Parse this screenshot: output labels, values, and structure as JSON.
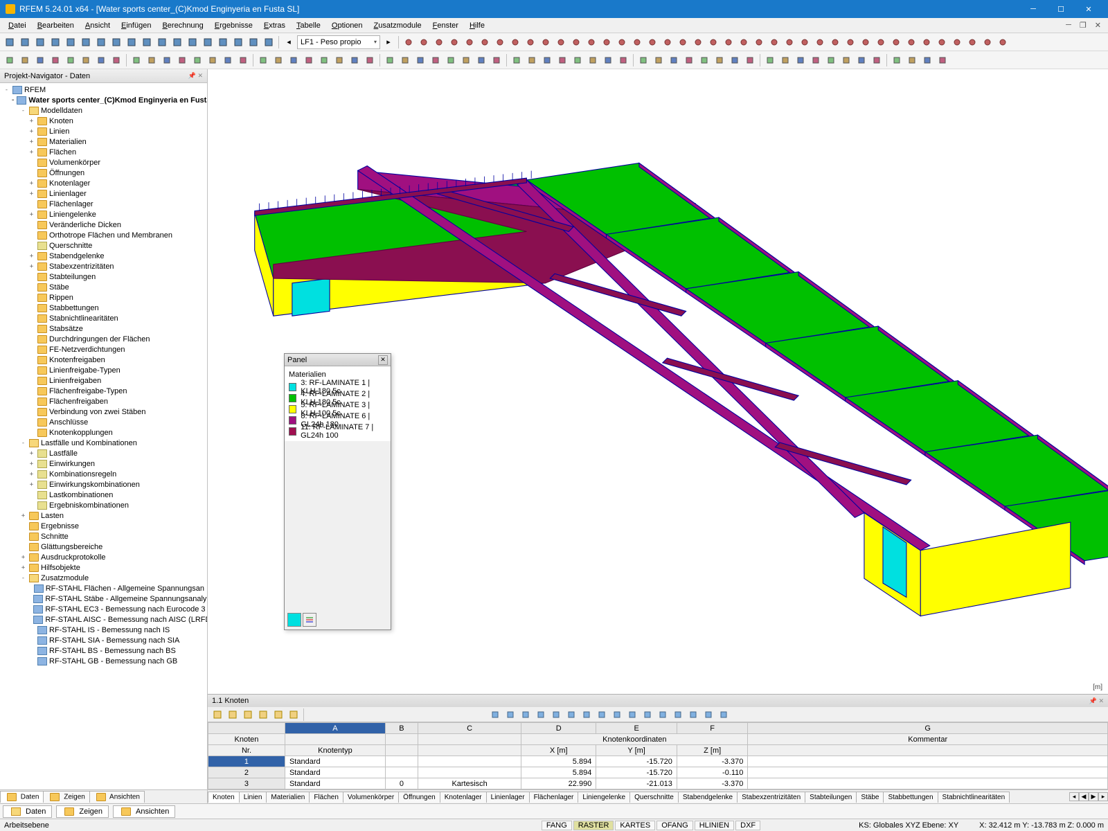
{
  "title": "RFEM 5.24.01 x64 - [Water sports center_(C)Kmod Enginyeria en Fusta SL]",
  "menus": [
    "Datei",
    "Bearbeiten",
    "Ansicht",
    "Einfügen",
    "Berechnung",
    "Ergebnisse",
    "Extras",
    "Tabelle",
    "Optionen",
    "Zusatzmodule",
    "Fenster",
    "Hilfe"
  ],
  "loadcase": "LF1 - Peso propio",
  "nav_title": "Projekt-Navigator - Daten",
  "tree_root": "RFEM",
  "tree_project": "Water sports center_(C)Kmod Enginyeria en Fusta SL",
  "tree": [
    {
      "l": "Modelldaten",
      "d": 2,
      "e": "-",
      "c": "folder-open",
      "children": [
        {
          "l": "Knoten",
          "d": 3,
          "e": "+",
          "c": "folder"
        },
        {
          "l": "Linien",
          "d": 3,
          "e": "+",
          "c": "folder"
        },
        {
          "l": "Materialien",
          "d": 3,
          "e": "+",
          "c": "folder"
        },
        {
          "l": "Flächen",
          "d": 3,
          "e": "+",
          "c": "folder"
        },
        {
          "l": "Volumenkörper",
          "d": 3,
          "e": "",
          "c": "folder"
        },
        {
          "l": "Öffnungen",
          "d": 3,
          "e": "",
          "c": "folder"
        },
        {
          "l": "Knotenlager",
          "d": 3,
          "e": "+",
          "c": "folder"
        },
        {
          "l": "Linienlager",
          "d": 3,
          "e": "+",
          "c": "folder"
        },
        {
          "l": "Flächenlager",
          "d": 3,
          "e": "",
          "c": "folder"
        },
        {
          "l": "Liniengelenke",
          "d": 3,
          "e": "+",
          "c": "folder"
        },
        {
          "l": "Veränderliche Dicken",
          "d": 3,
          "e": "",
          "c": "folder"
        },
        {
          "l": "Orthotrope Flächen und Membranen",
          "d": 3,
          "e": "",
          "c": "folder"
        },
        {
          "l": "Querschnitte",
          "d": 3,
          "e": "",
          "c": "leaf"
        },
        {
          "l": "Stabendgelenke",
          "d": 3,
          "e": "+",
          "c": "folder"
        },
        {
          "l": "Stabexzentrizitäten",
          "d": 3,
          "e": "+",
          "c": "folder"
        },
        {
          "l": "Stabteilungen",
          "d": 3,
          "e": "",
          "c": "folder"
        },
        {
          "l": "Stäbe",
          "d": 3,
          "e": "",
          "c": "folder"
        },
        {
          "l": "Rippen",
          "d": 3,
          "e": "",
          "c": "folder"
        },
        {
          "l": "Stabbettungen",
          "d": 3,
          "e": "",
          "c": "folder"
        },
        {
          "l": "Stabnichtlinearitäten",
          "d": 3,
          "e": "",
          "c": "folder"
        },
        {
          "l": "Stabsätze",
          "d": 3,
          "e": "",
          "c": "folder"
        },
        {
          "l": "Durchdringungen der Flächen",
          "d": 3,
          "e": "",
          "c": "folder"
        },
        {
          "l": "FE-Netzverdichtungen",
          "d": 3,
          "e": "",
          "c": "folder"
        },
        {
          "l": "Knotenfreigaben",
          "d": 3,
          "e": "",
          "c": "folder"
        },
        {
          "l": "Linienfreigabe-Typen",
          "d": 3,
          "e": "",
          "c": "folder"
        },
        {
          "l": "Linienfreigaben",
          "d": 3,
          "e": "",
          "c": "folder"
        },
        {
          "l": "Flächenfreigabe-Typen",
          "d": 3,
          "e": "",
          "c": "folder"
        },
        {
          "l": "Flächenfreigaben",
          "d": 3,
          "e": "",
          "c": "folder"
        },
        {
          "l": "Verbindung von zwei Stäben",
          "d": 3,
          "e": "",
          "c": "folder"
        },
        {
          "l": "Anschlüsse",
          "d": 3,
          "e": "",
          "c": "folder"
        },
        {
          "l": "Knotenkopplungen",
          "d": 3,
          "e": "",
          "c": "folder"
        }
      ]
    },
    {
      "l": "Lastfälle und Kombinationen",
      "d": 2,
      "e": "-",
      "c": "folder-open",
      "children": [
        {
          "l": "Lastfälle",
          "d": 3,
          "e": "+",
          "c": "leaf"
        },
        {
          "l": "Einwirkungen",
          "d": 3,
          "e": "+",
          "c": "leaf"
        },
        {
          "l": "Kombinationsregeln",
          "d": 3,
          "e": "+",
          "c": "leaf"
        },
        {
          "l": "Einwirkungskombinationen",
          "d": 3,
          "e": "+",
          "c": "leaf"
        },
        {
          "l": "Lastkombinationen",
          "d": 3,
          "e": "",
          "c": "leaf"
        },
        {
          "l": "Ergebniskombinationen",
          "d": 3,
          "e": "",
          "c": "leaf"
        }
      ]
    },
    {
      "l": "Lasten",
      "d": 2,
      "e": "+",
      "c": "folder"
    },
    {
      "l": "Ergebnisse",
      "d": 2,
      "e": "",
      "c": "folder"
    },
    {
      "l": "Schnitte",
      "d": 2,
      "e": "",
      "c": "folder"
    },
    {
      "l": "Glättungsbereiche",
      "d": 2,
      "e": "",
      "c": "folder"
    },
    {
      "l": "Ausdruckprotokolle",
      "d": 2,
      "e": "+",
      "c": "folder"
    },
    {
      "l": "Hilfsobjekte",
      "d": 2,
      "e": "+",
      "c": "folder"
    },
    {
      "l": "Zusatzmodule",
      "d": 2,
      "e": "-",
      "c": "folder-open",
      "children": [
        {
          "l": "RF-STAHL Flächen - Allgemeine Spannungsan",
          "d": 3,
          "e": "",
          "c": "module"
        },
        {
          "l": "RF-STAHL Stäbe - Allgemeine Spannungsanaly",
          "d": 3,
          "e": "",
          "c": "module"
        },
        {
          "l": "RF-STAHL EC3 - Bemessung nach Eurocode 3",
          "d": 3,
          "e": "",
          "c": "module"
        },
        {
          "l": "RF-STAHL AISC - Bemessung nach AISC (LRFD",
          "d": 3,
          "e": "",
          "c": "module"
        },
        {
          "l": "RF-STAHL IS - Bemessung nach IS",
          "d": 3,
          "e": "",
          "c": "module"
        },
        {
          "l": "RF-STAHL SIA - Bemessung nach SIA",
          "d": 3,
          "e": "",
          "c": "module"
        },
        {
          "l": "RF-STAHL BS - Bemessung nach BS",
          "d": 3,
          "e": "",
          "c": "module"
        },
        {
          "l": "RF-STAHL GB - Bemessung nach GB",
          "d": 3,
          "e": "",
          "c": "module"
        }
      ]
    }
  ],
  "navtabs": [
    "Daten",
    "Zeigen",
    "Ansichten"
  ],
  "panel": {
    "title": "Panel",
    "section": "Materialien",
    "items": [
      {
        "color": "#00e0e0",
        "label": "3: RF-LAMINATE 1 | KLH 180 5c"
      },
      {
        "color": "#00c000",
        "label": "4: RF-LAMINATE 2 | KLH 180 5c"
      },
      {
        "color": "#ffff00",
        "label": "5: RF-LAMINATE 3 | KLH 100 5c"
      },
      {
        "color": "#a01080",
        "label": "8: RF-LAMINATE 6 | GL24h 180"
      },
      {
        "color": "#a01050",
        "label": "11: RF-LAMINATE 7 | GL24h 100"
      }
    ]
  },
  "table": {
    "title": "1.1 Knoten",
    "cols_top": [
      "A",
      "B",
      "C",
      "D",
      "E",
      "F",
      "G"
    ],
    "header1": {
      "knoten": "Knoten",
      "koord": "Knotenkoordinaten",
      "komm": "Kommentar"
    },
    "header2": {
      "nr": "Nr.",
      "typ": "Knotentyp",
      "x": "X [m]",
      "y": "Y [m]",
      "z": "Z [m]"
    },
    "rows": [
      {
        "n": "1",
        "typ": "Standard",
        "bez": "",
        "x": "5.894",
        "y": "-15.720",
        "z": "-3.370",
        "k": ""
      },
      {
        "n": "2",
        "typ": "Standard",
        "bez": "",
        "x": "5.894",
        "y": "-15.720",
        "z": "-0.110",
        "k": ""
      },
      {
        "n": "3",
        "typ": "Standard",
        "bez": "0",
        "sys": "Kartesisch",
        "x": "22.990",
        "y": "-21.013",
        "z": "-3.370",
        "k": ""
      }
    ],
    "tabs": [
      "Knoten",
      "Linien",
      "Materialien",
      "Flächen",
      "Volumenkörper",
      "Öffnungen",
      "Knotenlager",
      "Linienlager",
      "Flächenlager",
      "Liniengelenke",
      "Querschnitte",
      "Stabendgelenke",
      "Stabexzentrizitäten",
      "Stabteilungen",
      "Stäbe",
      "Stabbettungen",
      "Stabnichtlinearitäten"
    ]
  },
  "status": {
    "left": "Arbeitsebene",
    "toggles": [
      "FANG",
      "RASTER",
      "KARTES",
      "OFANG",
      "HLINIEN",
      "DXF"
    ],
    "ks": "KS: Globales XYZ",
    "ebene": "Ebene: XY",
    "x": "X: 32.412 m",
    "y": "Y: -13.783 m",
    "z": "Z: 0.000 m"
  },
  "unit": "[m]",
  "colors": {
    "green": "#00c000",
    "yellow": "#ffff00",
    "cyan": "#00e0e0",
    "magenta": "#a01080",
    "darkmag": "#8a0f50",
    "edge": "#0000a0"
  }
}
